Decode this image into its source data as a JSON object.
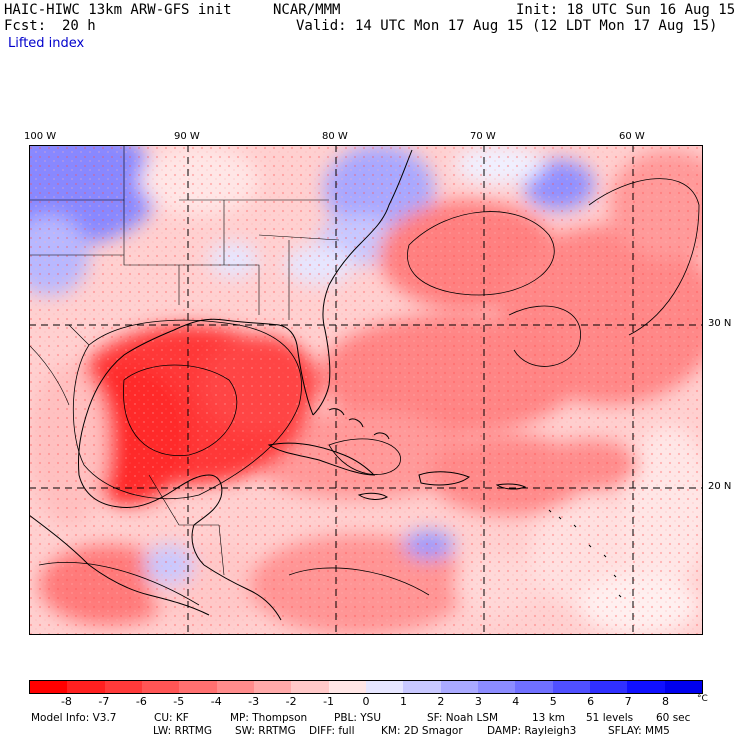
{
  "header": {
    "model": "HAIC-HIWC 13km ARW-GFS init",
    "center": "NCAR/MMM",
    "init": "Init: 18 UTC Sun 16 Aug 15",
    "fcst_label": "Fcst:",
    "fcst_value": "20 h",
    "valid": "Valid: 14 UTC Mon 17 Aug 15 (12 LDT Mon 17 Aug 15)",
    "field": "Lifted index"
  },
  "map": {
    "lon_labels": [
      "100 W",
      "90 W",
      "80 W",
      "70 W",
      "60 W"
    ],
    "lat_labels": [
      "30 N",
      "20 N"
    ],
    "grid_lon": [
      -90,
      -80,
      -70,
      -60
    ],
    "grid_lat": [
      30,
      20
    ],
    "grid_style": "dashed"
  },
  "colorbar": {
    "labels": [
      "-8",
      "-7",
      "-6",
      "-5",
      "-4",
      "-3",
      "-2",
      "-1",
      "0",
      "1",
      "2",
      "3",
      "4",
      "5",
      "6",
      "7",
      "8"
    ],
    "unit": "°C",
    "colors": [
      "#ff0000",
      "#ff2020",
      "#ff3a3a",
      "#ff5555",
      "#ff7070",
      "#ff8c8c",
      "#ffaaaa",
      "#ffc8c8",
      "#ffe6e6",
      "#e6e6ff",
      "#c8c8ff",
      "#aaaaff",
      "#8c8cff",
      "#7070ff",
      "#5050ff",
      "#3030ff",
      "#1010ff",
      "#0000ee"
    ]
  },
  "footer": {
    "line1": [
      "Model Info: V3.7",
      "CU: KF",
      "MP: Thompson",
      "PBL: YSU",
      "SF: Noah LSM",
      "13 km",
      "51 levels",
      "60 sec"
    ],
    "line2": [
      "LW: RRTMG",
      "SW: RRTMG",
      "DIFF: full",
      "KM: 2D Smagor",
      "DAMP: Rayleigh3",
      "SFLAY: MM5"
    ]
  }
}
